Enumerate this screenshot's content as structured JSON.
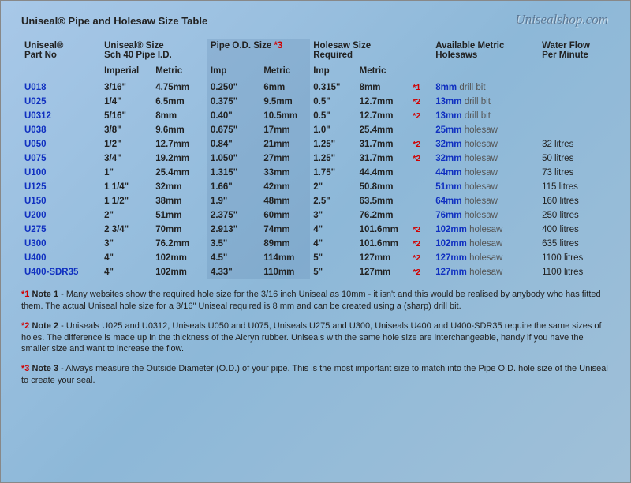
{
  "watermark": "Unisealshop.com",
  "title": "Uniseal® Pipe and Holesaw Size Table",
  "headers": {
    "partno": "Uniseal®\nPart No",
    "size": "Uniseal® Size\nSch 40 Pipe I.D.",
    "odsize": "Pipe O.D. Size",
    "odstar": "*3",
    "holesaw_req": "Holesaw Size\nRequired",
    "avail_metric": "Available Metric\nHolesaws",
    "flow": "Water Flow\nPer Minute",
    "imperial": "Imperial",
    "metric": "Metric",
    "imp": "Imp"
  },
  "rows": [
    {
      "part": "U018",
      "imp": "3/16\"",
      "met": "4.75mm",
      "odimp": "0.250\"",
      "odmet": "6mm",
      "hsimp": "0.315\"",
      "hsmet": "8mm",
      "star": "*1",
      "hslink": "8mm",
      "hsuffix": "drill bit",
      "flow": ""
    },
    {
      "part": "U025",
      "imp": "1/4\"",
      "met": "6.5mm",
      "odimp": "0.375\"",
      "odmet": "9.5mm",
      "hsimp": "0.5\"",
      "hsmet": "12.7mm",
      "star": "*2",
      "hslink": "13mm",
      "hsuffix": "drill bit",
      "flow": ""
    },
    {
      "part": "U0312",
      "imp": "5/16\"",
      "met": "8mm",
      "odimp": "0.40\"",
      "odmet": "10.5mm",
      "hsimp": "0.5\"",
      "hsmet": "12.7mm",
      "star": "*2",
      "hslink": "13mm",
      "hsuffix": "drill bit",
      "flow": ""
    },
    {
      "part": "U038",
      "imp": "3/8\"",
      "met": "9.6mm",
      "odimp": "0.675\"",
      "odmet": "17mm",
      "hsimp": "1.0\"",
      "hsmet": "25.4mm",
      "star": "",
      "hslink": "25mm",
      "hsuffix": "holesaw",
      "flow": ""
    },
    {
      "part": "U050",
      "imp": "1/2\"",
      "met": "12.7mm",
      "odimp": "0.84\"",
      "odmet": "21mm",
      "hsimp": "1.25\"",
      "hsmet": "31.7mm",
      "star": "*2",
      "hslink": "32mm",
      "hsuffix": "holesaw",
      "flow": "32 litres"
    },
    {
      "part": "U075",
      "imp": "3/4\"",
      "met": "19.2mm",
      "odimp": "1.050\"",
      "odmet": "27mm",
      "hsimp": "1.25\"",
      "hsmet": "31.7mm",
      "star": "*2",
      "hslink": "32mm",
      "hsuffix": "holesaw",
      "flow": "50 litres"
    },
    {
      "part": "U100",
      "imp": "1\"",
      "met": "25.4mm",
      "odimp": "1.315\"",
      "odmet": "33mm",
      "hsimp": "1.75\"",
      "hsmet": "44.4mm",
      "star": "",
      "hslink": "44mm",
      "hsuffix": "holesaw",
      "flow": "73 litres"
    },
    {
      "part": "U125",
      "imp": "1 1/4\"",
      "met": "32mm",
      "odimp": "1.66\"",
      "odmet": "42mm",
      "hsimp": "2\"",
      "hsmet": "50.8mm",
      "star": "",
      "hslink": "51mm",
      "hsuffix": "holesaw",
      "flow": "115 litres"
    },
    {
      "part": "U150",
      "imp": "1 1/2\"",
      "met": "38mm",
      "odimp": "1.9\"",
      "odmet": "48mm",
      "hsimp": "2.5\"",
      "hsmet": "63.5mm",
      "star": "",
      "hslink": "64mm",
      "hsuffix": "holesaw",
      "flow": "160 litres"
    },
    {
      "part": "U200",
      "imp": "2\"",
      "met": "51mm",
      "odimp": "2.375\"",
      "odmet": "60mm",
      "hsimp": "3\"",
      "hsmet": "76.2mm",
      "star": "",
      "hslink": "76mm",
      "hsuffix": "holesaw",
      "flow": "250 litres"
    },
    {
      "part": "U275",
      "imp": "2 3/4\"",
      "met": "70mm",
      "odimp": "2.913\"",
      "odmet": "74mm",
      "hsimp": "4\"",
      "hsmet": "101.6mm",
      "star": "*2",
      "hslink": "102mm",
      "hsuffix": "holesaw",
      "flow": "400 litres"
    },
    {
      "part": "U300",
      "imp": "3\"",
      "met": "76.2mm",
      "odimp": "3.5\"",
      "odmet": "89mm",
      "hsimp": "4\"",
      "hsmet": "101.6mm",
      "star": "*2",
      "hslink": "102mm",
      "hsuffix": "holesaw",
      "flow": "635 litres"
    },
    {
      "part": "U400",
      "imp": "4\"",
      "met": "102mm",
      "odimp": "4.5\"",
      "odmet": "114mm",
      "hsimp": "5\"",
      "hsmet": "127mm",
      "star": "*2",
      "hslink": "127mm",
      "hsuffix": "holesaw",
      "flow": "1100 litres"
    },
    {
      "part": "U400-SDR35",
      "imp": "4\"",
      "met": "102mm",
      "odimp": "4.33\"",
      "odmet": "110mm",
      "hsimp": "5\"",
      "hsmet": "127mm",
      "star": "*2",
      "hslink": "127mm",
      "hsuffix": "holesaw",
      "flow": "1100 litres"
    }
  ],
  "notes": {
    "n1star": "*1",
    "n1label": "Note 1",
    "n1text": " - Many websites show the required hole size for the 3/16 inch Uniseal as 10mm - it isn't and this would be realised by anybody who has fitted them. The actual Uniseal hole size for a 3/16\" Uniseal required is 8 mm and can be created using a (sharp) drill bit.",
    "n2star": "*2",
    "n2label": "Note 2",
    "n2text": " - Uniseals U025 and U0312, Uniseals U050 and U075, Uniseals U275 and U300, Uniseals U400 and U400-SDR35 require the same sizes of holes. The difference is made up in the thickness of the Alcryn rubber. Uniseals with the same hole size are interchangeable, handy if you have the smaller size and want to increase the flow.",
    "n3star": "*3",
    "n3label": "Note 3",
    "n3text": " - Always measure the Outside Diameter (O.D.) of your pipe. This is the most important size to match into the Pipe O.D. hole size of the Uniseal to create your seal."
  },
  "colwidths": {
    "part": "90px",
    "imp": "58px",
    "met": "62px",
    "odimp": "60px",
    "odmet": "56px",
    "hsimp": "52px",
    "hsmet": "62px",
    "star": "24px",
    "avail": "120px",
    "flow": "80px"
  }
}
